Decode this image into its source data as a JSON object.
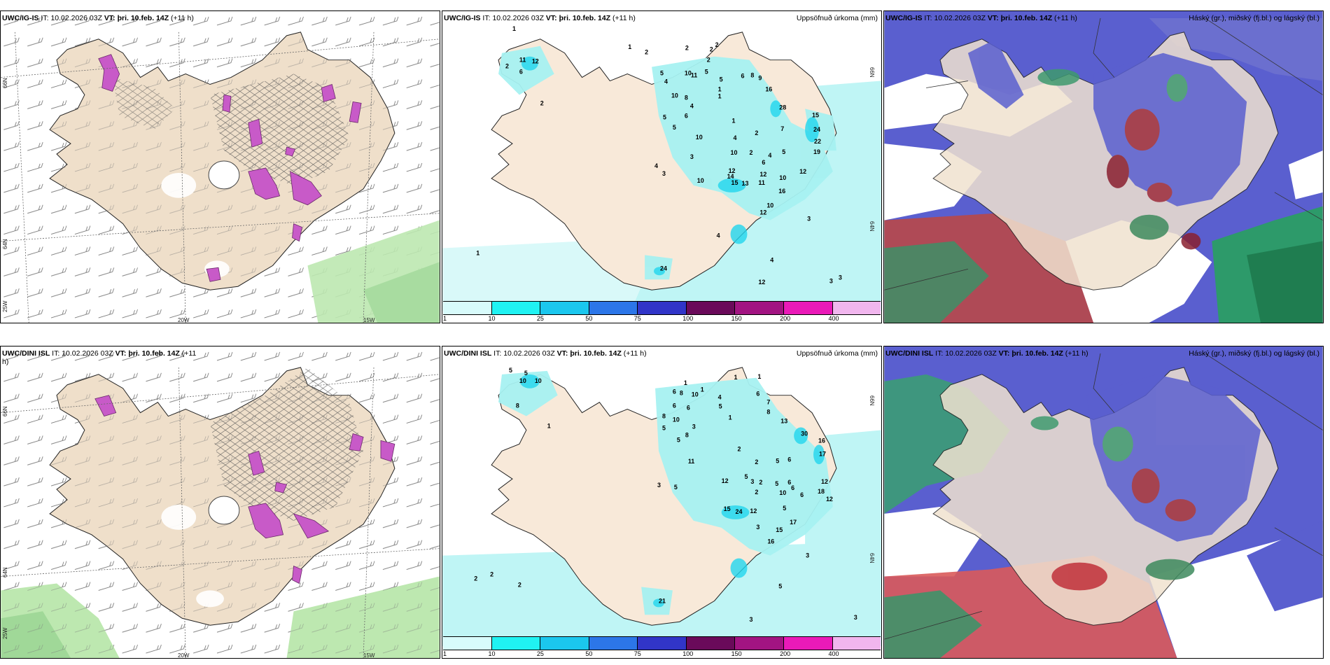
{
  "panels": {
    "p1": {
      "model": "UWC/IG-IS",
      "it_label": "IT:",
      "it": "10.02.2026 03Z",
      "vt_label": "VT:",
      "vt": "þri. 10.feb. 14Z",
      "lead": "(+11 h)",
      "coords": {
        "lat_left": "66N",
        "lat_right": "64N",
        "lat_bottom": "25W",
        "lon1": "20W",
        "lon2": "15W"
      }
    },
    "p2": {
      "model": "UWC/IG-IS",
      "it_label": "IT:",
      "it": "10.02.2026 03Z",
      "vt_label": "VT:",
      "vt": "þri. 10.feb. 14Z",
      "lead": "(+11 h)",
      "right": "Uppsöfnuð úrkoma (mm)",
      "coords": {
        "lat_top": "66N",
        "lat_mid": "64N"
      }
    },
    "p3": {
      "model": "UWC/IG-IS",
      "it_label": "IT:",
      "it": "10.02.2026 03Z",
      "vt_label": "VT:",
      "vt": "þri. 10.feb. 14Z",
      "lead": "(+11 h)",
      "right": "Háský (gr.), miðský (fj.bl.) og lágský (bl.)"
    },
    "p4": {
      "model": "UWC/DINI ISL",
      "it_label": "IT:",
      "it": "10.02.2026 03Z",
      "vt_label": "VT:",
      "vt": "þri. 10.feb. 14Z",
      "lead": "(+11",
      "lead2": "h)",
      "coords": {
        "lat_left": "66N",
        "lat_right": "64N",
        "lat_bottom": "25W",
        "lon1": "20W",
        "lon2": "15W"
      }
    },
    "p5": {
      "model": "UWC/DINI ISL",
      "it_label": "IT:",
      "it": "10.02.2026 03Z",
      "vt_label": "VT:",
      "vt": "þri. 10.feb. 14Z",
      "lead": "(+11 h)",
      "right": "Uppsöfnuð úrkoma (mm)",
      "coords": {
        "lat_top": "66N",
        "lat_mid": "64N"
      }
    },
    "p6": {
      "model": "UWC/DINI ISL",
      "it_label": "IT:",
      "it": "10.02.2026 03Z",
      "vt_label": "VT:",
      "vt": "þri. 10.feb. 14Z",
      "lead": "(+11 h)",
      "right": "Háský (gr.), miðský (fj.bl.) og lágský (bl.)"
    }
  },
  "colorbar": {
    "colors": [
      "#d8fbfb",
      "#20f2f2",
      "#1bc7ee",
      "#2c76e8",
      "#3135c8",
      "#6a0a5a",
      "#a21482",
      "#ea1ab8",
      "#f1b6ee"
    ],
    "labels": [
      "1",
      "10",
      "25",
      "50",
      "75",
      "100",
      "150",
      "200",
      "400"
    ]
  },
  "precip_upper": [
    {
      "v": "1",
      "x": 100,
      "y": 28
    },
    {
      "v": "1",
      "x": 266,
      "y": 54
    },
    {
      "v": "2",
      "x": 290,
      "y": 62
    },
    {
      "v": "2",
      "x": 348,
      "y": 56
    },
    {
      "v": "2",
      "x": 391,
      "y": 51
    },
    {
      "v": "2",
      "x": 383,
      "y": 58
    },
    {
      "v": "2",
      "x": 379,
      "y": 73
    },
    {
      "v": "11",
      "x": 110,
      "y": 73
    },
    {
      "v": "12",
      "x": 128,
      "y": 75
    },
    {
      "v": "2",
      "x": 90,
      "y": 82
    },
    {
      "v": "6",
      "x": 110,
      "y": 90
    },
    {
      "v": "5",
      "x": 312,
      "y": 92
    },
    {
      "v": "10",
      "x": 347,
      "y": 92
    },
    {
      "v": "11",
      "x": 356,
      "y": 95
    },
    {
      "v": "5",
      "x": 376,
      "y": 90
    },
    {
      "v": "5",
      "x": 397,
      "y": 101
    },
    {
      "v": "6",
      "x": 428,
      "y": 96
    },
    {
      "v": "8",
      "x": 442,
      "y": 95
    },
    {
      "v": "9",
      "x": 453,
      "y": 99
    },
    {
      "v": "16",
      "x": 463,
      "y": 115
    },
    {
      "v": "4",
      "x": 318,
      "y": 104
    },
    {
      "v": "1",
      "x": 395,
      "y": 115
    },
    {
      "v": "1",
      "x": 395,
      "y": 125
    },
    {
      "v": "2",
      "x": 140,
      "y": 135
    },
    {
      "v": "10",
      "x": 328,
      "y": 124
    },
    {
      "v": "8",
      "x": 347,
      "y": 127
    },
    {
      "v": "4",
      "x": 355,
      "y": 139
    },
    {
      "v": "28",
      "x": 483,
      "y": 141
    },
    {
      "v": "15",
      "x": 530,
      "y": 152
    },
    {
      "v": "5",
      "x": 316,
      "y": 155
    },
    {
      "v": "6",
      "x": 347,
      "y": 153
    },
    {
      "v": "1",
      "x": 415,
      "y": 160
    },
    {
      "v": "7",
      "x": 485,
      "y": 172
    },
    {
      "v": "24",
      "x": 532,
      "y": 173
    },
    {
      "v": "5",
      "x": 330,
      "y": 170
    },
    {
      "v": "10",
      "x": 363,
      "y": 184
    },
    {
      "v": "4",
      "x": 417,
      "y": 185
    },
    {
      "v": "2",
      "x": 448,
      "y": 178
    },
    {
      "v": "22",
      "x": 533,
      "y": 190
    },
    {
      "v": "10",
      "x": 413,
      "y": 206
    },
    {
      "v": "2",
      "x": 440,
      "y": 206
    },
    {
      "v": "4",
      "x": 467,
      "y": 210
    },
    {
      "v": "5",
      "x": 487,
      "y": 205
    },
    {
      "v": "19",
      "x": 532,
      "y": 205
    },
    {
      "v": "3",
      "x": 355,
      "y": 212
    },
    {
      "v": "4",
      "x": 304,
      "y": 225
    },
    {
      "v": "6",
      "x": 458,
      "y": 220
    },
    {
      "v": "12",
      "x": 410,
      "y": 232
    },
    {
      "v": "3",
      "x": 315,
      "y": 236
    },
    {
      "v": "14",
      "x": 408,
      "y": 240
    },
    {
      "v": "12",
      "x": 455,
      "y": 237
    },
    {
      "v": "10",
      "x": 483,
      "y": 242
    },
    {
      "v": "12",
      "x": 512,
      "y": 233
    },
    {
      "v": "10",
      "x": 365,
      "y": 246
    },
    {
      "v": "15",
      "x": 414,
      "y": 249
    },
    {
      "v": "13",
      "x": 429,
      "y": 250
    },
    {
      "v": "11",
      "x": 453,
      "y": 249
    },
    {
      "v": "16",
      "x": 482,
      "y": 261
    },
    {
      "v": "10",
      "x": 465,
      "y": 282
    },
    {
      "v": "12",
      "x": 455,
      "y": 292
    },
    {
      "v": "3",
      "x": 523,
      "y": 301
    },
    {
      "v": "4",
      "x": 393,
      "y": 325
    },
    {
      "v": "1",
      "x": 48,
      "y": 350
    },
    {
      "v": "4",
      "x": 470,
      "y": 360
    },
    {
      "v": "12",
      "x": 453,
      "y": 392
    },
    {
      "v": "3",
      "x": 568,
      "y": 385
    },
    {
      "v": "3",
      "x": 555,
      "y": 390
    },
    {
      "v": "24",
      "x": 312,
      "y": 372
    }
  ],
  "precip_lower": [
    {
      "v": "5",
      "x": 95,
      "y": 37
    },
    {
      "v": "5",
      "x": 117,
      "y": 41
    },
    {
      "v": "10",
      "x": 110,
      "y": 52
    },
    {
      "v": "10",
      "x": 132,
      "y": 52
    },
    {
      "v": "1",
      "x": 346,
      "y": 55
    },
    {
      "v": "1",
      "x": 370,
      "y": 65
    },
    {
      "v": "1",
      "x": 418,
      "y": 47
    },
    {
      "v": "1",
      "x": 452,
      "y": 46
    },
    {
      "v": "6",
      "x": 330,
      "y": 68
    },
    {
      "v": "8",
      "x": 340,
      "y": 70
    },
    {
      "v": "10",
      "x": 357,
      "y": 72
    },
    {
      "v": "4",
      "x": 395,
      "y": 76
    },
    {
      "v": "6",
      "x": 450,
      "y": 71
    },
    {
      "v": "7",
      "x": 465,
      "y": 83
    },
    {
      "v": "8",
      "x": 105,
      "y": 88
    },
    {
      "v": "6",
      "x": 330,
      "y": 88
    },
    {
      "v": "6",
      "x": 350,
      "y": 91
    },
    {
      "v": "5",
      "x": 396,
      "y": 89
    },
    {
      "v": "8",
      "x": 465,
      "y": 97
    },
    {
      "v": "13",
      "x": 485,
      "y": 110
    },
    {
      "v": "1",
      "x": 150,
      "y": 117
    },
    {
      "v": "8",
      "x": 315,
      "y": 103
    },
    {
      "v": "10",
      "x": 330,
      "y": 108
    },
    {
      "v": "3",
      "x": 358,
      "y": 118
    },
    {
      "v": "1",
      "x": 410,
      "y": 105
    },
    {
      "v": "30",
      "x": 514,
      "y": 128
    },
    {
      "v": "16",
      "x": 539,
      "y": 138
    },
    {
      "v": "5",
      "x": 315,
      "y": 120
    },
    {
      "v": "8",
      "x": 348,
      "y": 130
    },
    {
      "v": "5",
      "x": 336,
      "y": 137
    },
    {
      "v": "17",
      "x": 540,
      "y": 157
    },
    {
      "v": "2",
      "x": 423,
      "y": 150
    },
    {
      "v": "11",
      "x": 352,
      "y": 168
    },
    {
      "v": "2",
      "x": 448,
      "y": 169
    },
    {
      "v": "5",
      "x": 478,
      "y": 167
    },
    {
      "v": "6",
      "x": 495,
      "y": 165
    },
    {
      "v": "5",
      "x": 433,
      "y": 190
    },
    {
      "v": "12",
      "x": 400,
      "y": 196
    },
    {
      "v": "3",
      "x": 442,
      "y": 197
    },
    {
      "v": "2",
      "x": 454,
      "y": 198
    },
    {
      "v": "5",
      "x": 477,
      "y": 200
    },
    {
      "v": "6",
      "x": 495,
      "y": 198
    },
    {
      "v": "12",
      "x": 543,
      "y": 197
    },
    {
      "v": "3",
      "x": 308,
      "y": 202
    },
    {
      "v": "5",
      "x": 332,
      "y": 205
    },
    {
      "v": "2",
      "x": 448,
      "y": 212
    },
    {
      "v": "10",
      "x": 483,
      "y": 213
    },
    {
      "v": "6",
      "x": 500,
      "y": 206
    },
    {
      "v": "6",
      "x": 513,
      "y": 216
    },
    {
      "v": "18",
      "x": 538,
      "y": 211
    },
    {
      "v": "12",
      "x": 550,
      "y": 222
    },
    {
      "v": "15",
      "x": 403,
      "y": 236
    },
    {
      "v": "24",
      "x": 420,
      "y": 240
    },
    {
      "v": "12",
      "x": 441,
      "y": 239
    },
    {
      "v": "5",
      "x": 488,
      "y": 235
    },
    {
      "v": "17",
      "x": 498,
      "y": 255
    },
    {
      "v": "3",
      "x": 450,
      "y": 262
    },
    {
      "v": "15",
      "x": 478,
      "y": 266
    },
    {
      "v": "16",
      "x": 466,
      "y": 283
    },
    {
      "v": "3",
      "x": 521,
      "y": 303
    },
    {
      "v": "2",
      "x": 45,
      "y": 336
    },
    {
      "v": "2",
      "x": 68,
      "y": 330
    },
    {
      "v": "2",
      "x": 108,
      "y": 345
    },
    {
      "v": "5",
      "x": 482,
      "y": 347
    },
    {
      "v": "3",
      "x": 440,
      "y": 395
    },
    {
      "v": "3",
      "x": 590,
      "y": 392
    },
    {
      "v": "21",
      "x": 310,
      "y": 368
    }
  ]
}
